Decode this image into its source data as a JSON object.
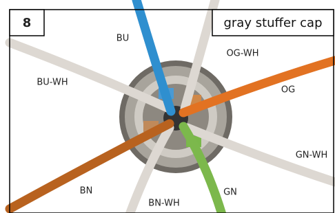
{
  "step": "8",
  "title": "gray stuffer cap",
  "wires": [
    {
      "label": "BU"
    },
    {
      "label": "OG-WH"
    },
    {
      "label": "BU-WH"
    },
    {
      "label": "OG"
    },
    {
      "label": "GN-WH"
    },
    {
      "label": "BN"
    },
    {
      "label": "BN-WH"
    },
    {
      "label": "GN"
    }
  ]
}
